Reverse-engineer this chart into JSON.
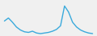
{
  "x": [
    0,
    1,
    2,
    3,
    4,
    5,
    6,
    7,
    8,
    9,
    10,
    11,
    12,
    13,
    14,
    15,
    16,
    17,
    18,
    19,
    20,
    21,
    22
  ],
  "y": [
    30,
    35,
    28,
    20,
    15,
    12,
    11,
    13,
    10,
    9,
    10,
    11,
    13,
    16,
    22,
    55,
    45,
    28,
    20,
    15,
    12,
    10,
    9
  ],
  "line_color": "#3aaadc",
  "linewidth": 1.0,
  "background_color": "#f0f0f0",
  "ylim_min": 5,
  "ylim_max": 65
}
